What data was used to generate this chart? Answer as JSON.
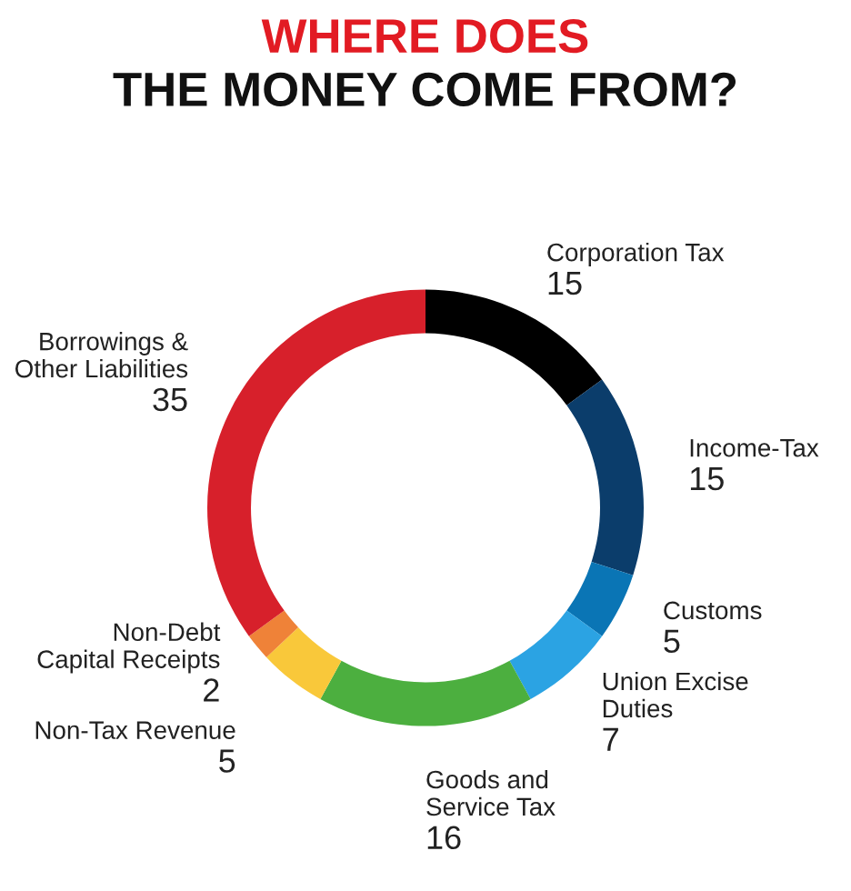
{
  "chart_data": {
    "type": "donut",
    "title": "WHERE DOES\nTHE MONEY COME FROM?",
    "categories": [
      "Corporation Tax",
      "Income-Tax",
      "Customs",
      "Union Excise\nDuties",
      "Goods and\nService Tax",
      "Non-Tax Revenue",
      "Non-Debt\nCapital Receipts",
      "Borrowings &\nOther Liabilities"
    ],
    "values": [
      15,
      15,
      5,
      7,
      16,
      5,
      2,
      35
    ],
    "colors": [
      "#000000",
      "#0b3d6b",
      "#0a75b5",
      "#2ba3e3",
      "#4caf3f",
      "#f9c83a",
      "#ef8238",
      "#d7202b"
    ],
    "data_labels": true
  }
}
